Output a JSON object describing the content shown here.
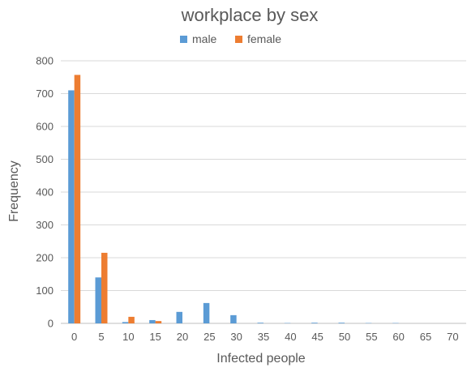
{
  "chart_data": {
    "type": "bar",
    "title": "workplace by sex",
    "xlabel": "Infected people",
    "ylabel": "Frequency",
    "categories": [
      "0",
      "5",
      "10",
      "15",
      "20",
      "25",
      "30",
      "35",
      "40",
      "45",
      "50",
      "55",
      "60",
      "65",
      "70"
    ],
    "series": [
      {
        "name": "male",
        "color": "#5b9bd5",
        "values": [
          710,
          140,
          4,
          10,
          35,
          62,
          25,
          2,
          1,
          2,
          2,
          1,
          1,
          0,
          0
        ]
      },
      {
        "name": "female",
        "color": "#ed7d31",
        "values": [
          757,
          215,
          20,
          7,
          0,
          0,
          0,
          0,
          0,
          0,
          0,
          0,
          0,
          0,
          0
        ]
      }
    ],
    "ylim": [
      0,
      800
    ],
    "yticks": [
      0,
      100,
      200,
      300,
      400,
      500,
      600,
      700,
      800
    ],
    "grid": true,
    "legend_position": "top"
  }
}
